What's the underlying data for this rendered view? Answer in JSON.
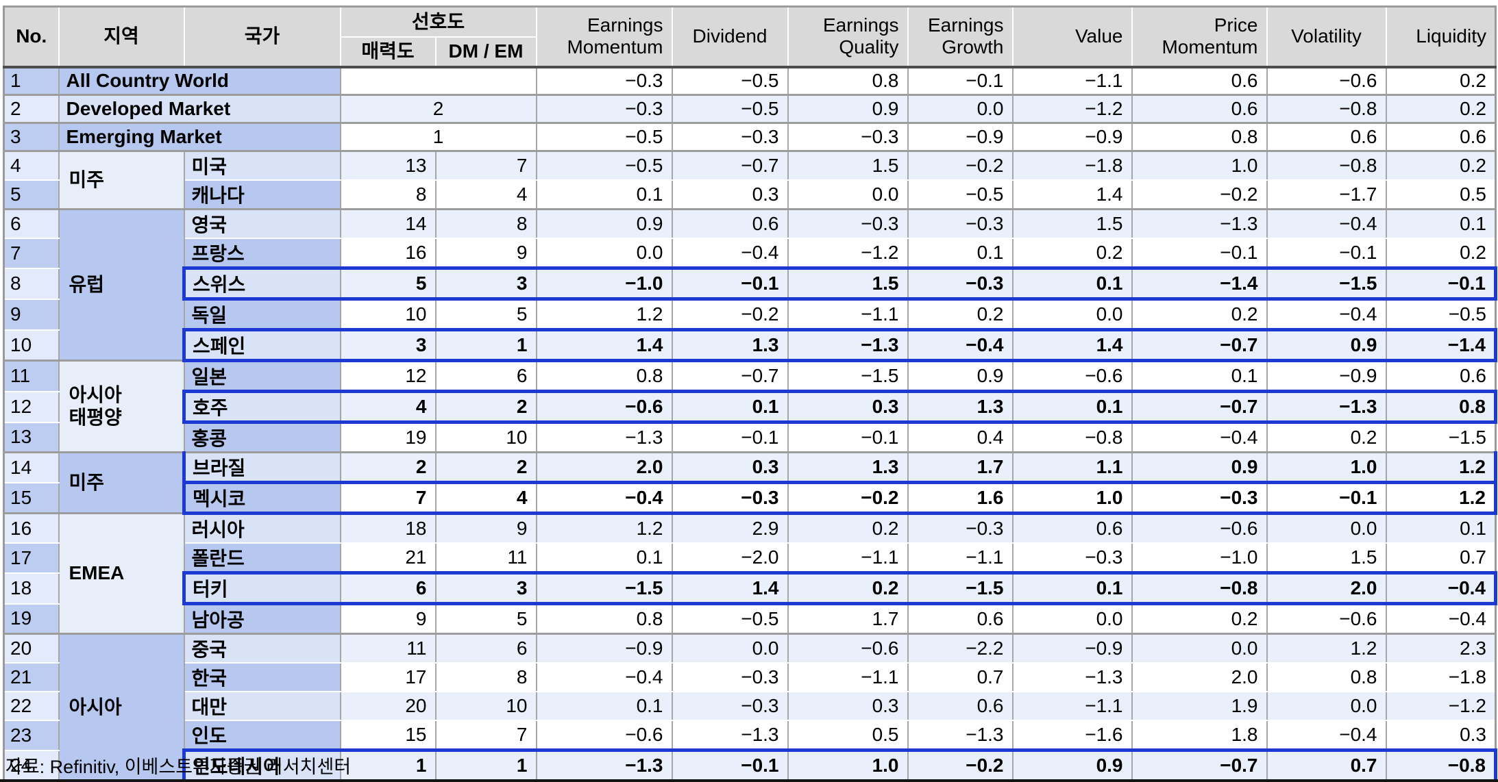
{
  "header": {
    "no": "No.",
    "region": "지역",
    "country": "국가",
    "preference": "선호도",
    "attractiveness": "매력도",
    "dm_em": "DM / EM",
    "factors": [
      "Earnings\nMomentum",
      "Dividend",
      "Earnings\nQuality",
      "Earnings\nGrowth",
      "Value",
      "Price\nMomentum",
      "Volatility",
      "Liquidity"
    ]
  },
  "rows": [
    {
      "no": "1",
      "merged_label": "All Country World",
      "pref": "",
      "highlight": false,
      "values": [
        "−0.3",
        "−0.5",
        "0.8",
        "−0.1",
        "−1.1",
        "0.6",
        "−0.6",
        "0.2"
      ]
    },
    {
      "no": "2",
      "merged_label": "Developed Market",
      "pref": "2",
      "highlight": false,
      "values": [
        "−0.3",
        "−0.5",
        "0.9",
        "0.0",
        "−1.2",
        "0.6",
        "−0.8",
        "0.2"
      ]
    },
    {
      "no": "3",
      "merged_label": "Emerging Market",
      "pref": "1",
      "highlight": false,
      "values": [
        "−0.5",
        "−0.3",
        "−0.3",
        "−0.9",
        "−0.9",
        "0.8",
        "0.6",
        "0.6"
      ]
    },
    {
      "no": "4",
      "region": {
        "label": "미주",
        "rowspan": 2
      },
      "country": "미국",
      "attractiveness": "13",
      "dm_em": "7",
      "highlight": false,
      "values": [
        "−0.5",
        "−0.7",
        "1.5",
        "−0.2",
        "−1.8",
        "1.0",
        "−0.8",
        "0.2"
      ]
    },
    {
      "no": "5",
      "country": "캐나다",
      "attractiveness": "8",
      "dm_em": "4",
      "highlight": false,
      "values": [
        "0.1",
        "0.3",
        "0.0",
        "−0.5",
        "1.4",
        "−0.2",
        "−1.7",
        "0.5"
      ]
    },
    {
      "no": "6",
      "region": {
        "label": "유럽",
        "rowspan": 5
      },
      "country": "영국",
      "attractiveness": "14",
      "dm_em": "8",
      "highlight": false,
      "values": [
        "0.9",
        "0.6",
        "−0.3",
        "−0.3",
        "1.5",
        "−1.3",
        "−0.4",
        "0.1"
      ]
    },
    {
      "no": "7",
      "country": "프랑스",
      "attractiveness": "16",
      "dm_em": "9",
      "highlight": false,
      "values": [
        "0.0",
        "−0.4",
        "−1.2",
        "0.1",
        "0.2",
        "−0.1",
        "−0.1",
        "0.2"
      ]
    },
    {
      "no": "8",
      "country": "스위스",
      "attractiveness": "5",
      "dm_em": "3",
      "highlight": true,
      "values": [
        "−1.0",
        "−0.1",
        "1.5",
        "−0.3",
        "0.1",
        "−1.4",
        "−1.5",
        "−0.1"
      ]
    },
    {
      "no": "9",
      "country": "독일",
      "attractiveness": "10",
      "dm_em": "5",
      "highlight": false,
      "values": [
        "1.2",
        "−0.2",
        "−1.1",
        "0.2",
        "0.0",
        "0.2",
        "−0.4",
        "−0.5"
      ]
    },
    {
      "no": "10",
      "country": "스페인",
      "attractiveness": "3",
      "dm_em": "1",
      "highlight": true,
      "values": [
        "1.4",
        "1.3",
        "−1.3",
        "−0.4",
        "1.4",
        "−0.7",
        "0.9",
        "−1.4"
      ]
    },
    {
      "no": "11",
      "region": {
        "label": "아시아\n태평양",
        "rowspan": 3
      },
      "country": "일본",
      "attractiveness": "12",
      "dm_em": "6",
      "highlight": false,
      "values": [
        "0.8",
        "−0.7",
        "−1.5",
        "0.9",
        "−0.6",
        "0.1",
        "−0.9",
        "0.6"
      ]
    },
    {
      "no": "12",
      "country": "호주",
      "attractiveness": "4",
      "dm_em": "2",
      "highlight": true,
      "values": [
        "−0.6",
        "0.1",
        "0.3",
        "1.3",
        "0.1",
        "−0.7",
        "−1.3",
        "0.8"
      ]
    },
    {
      "no": "13",
      "country": "홍콩",
      "attractiveness": "19",
      "dm_em": "10",
      "highlight": false,
      "values": [
        "−1.3",
        "−0.1",
        "−0.1",
        "0.4",
        "−0.8",
        "−0.4",
        "0.2",
        "−1.5"
      ]
    },
    {
      "no": "14",
      "region": {
        "label": "미주",
        "rowspan": 2
      },
      "country": "브라질",
      "attractiveness": "2",
      "dm_em": "2",
      "highlight": true,
      "values": [
        "2.0",
        "0.3",
        "1.3",
        "1.7",
        "1.1",
        "0.9",
        "1.0",
        "1.2"
      ]
    },
    {
      "no": "15",
      "country": "멕시코",
      "attractiveness": "7",
      "dm_em": "4",
      "highlight": true,
      "values": [
        "−0.4",
        "−0.3",
        "−0.2",
        "1.6",
        "1.0",
        "−0.3",
        "−0.1",
        "1.2"
      ]
    },
    {
      "no": "16",
      "region": {
        "label": "EMEA",
        "rowspan": 4
      },
      "country": "러시아",
      "attractiveness": "18",
      "dm_em": "9",
      "highlight": false,
      "values": [
        "1.2",
        "2.9",
        "0.2",
        "−0.3",
        "0.6",
        "−0.6",
        "0.0",
        "0.1"
      ]
    },
    {
      "no": "17",
      "country": "폴란드",
      "attractiveness": "21",
      "dm_em": "11",
      "highlight": false,
      "values": [
        "0.1",
        "−2.0",
        "−1.1",
        "−1.1",
        "−0.3",
        "−1.0",
        "1.5",
        "0.7"
      ]
    },
    {
      "no": "18",
      "country": "터키",
      "attractiveness": "6",
      "dm_em": "3",
      "highlight": true,
      "values": [
        "−1.5",
        "1.4",
        "0.2",
        "−1.5",
        "0.1",
        "−0.8",
        "2.0",
        "−0.4"
      ]
    },
    {
      "no": "19",
      "country": "남아공",
      "attractiveness": "9",
      "dm_em": "5",
      "highlight": false,
      "values": [
        "0.8",
        "−0.5",
        "1.7",
        "0.6",
        "0.0",
        "0.2",
        "−0.6",
        "−0.4"
      ]
    },
    {
      "no": "20",
      "region": {
        "label": "아시아",
        "rowspan": 5
      },
      "country": "중국",
      "attractiveness": "11",
      "dm_em": "6",
      "highlight": false,
      "values": [
        "−0.9",
        "0.0",
        "−0.6",
        "−2.2",
        "−0.9",
        "0.0",
        "1.2",
        "2.3"
      ]
    },
    {
      "no": "21",
      "country": "한국",
      "attractiveness": "17",
      "dm_em": "8",
      "highlight": false,
      "values": [
        "−0.4",
        "−0.3",
        "−1.1",
        "0.7",
        "−1.3",
        "2.0",
        "0.8",
        "−1.8"
      ]
    },
    {
      "no": "22",
      "country": "대만",
      "attractiveness": "20",
      "dm_em": "10",
      "highlight": false,
      "values": [
        "0.1",
        "−0.3",
        "0.3",
        "0.6",
        "−1.1",
        "1.9",
        "0.0",
        "−1.2"
      ]
    },
    {
      "no": "23",
      "country": "인도",
      "attractiveness": "15",
      "dm_em": "7",
      "highlight": false,
      "values": [
        "−0.6",
        "−1.3",
        "0.5",
        "−1.3",
        "−1.6",
        "1.8",
        "−0.4",
        "0.3"
      ]
    },
    {
      "no": "24",
      "country": "인도네시아",
      "attractiveness": "1",
      "dm_em": "1",
      "highlight": true,
      "values": [
        "−1.3",
        "−0.1",
        "1.0",
        "−0.2",
        "0.9",
        "−0.7",
        "0.7",
        "−0.8"
      ]
    }
  ],
  "footer": {
    "source": "자료: Refinitiv, 이베스트투자증권 리서치센터"
  },
  "colors": {
    "highlight_border": "#1c39d2",
    "header_bg": "#d9d9d9",
    "label_dark": "#b7c8f0",
    "label_light": "#d9e3f8",
    "data_stripe": "#e9effb",
    "region_light": "#e8eef9"
  }
}
